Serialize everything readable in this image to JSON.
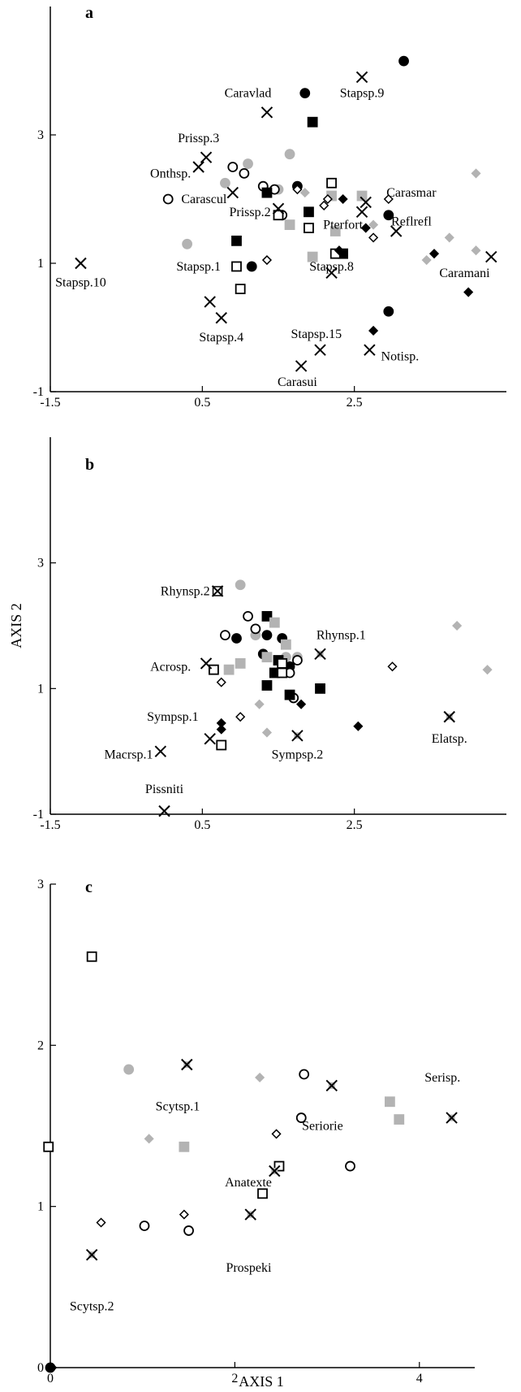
{
  "colors": {
    "black": "#000000",
    "gray": "#b3b3b3",
    "white": "#ffffff"
  },
  "marker_types": [
    "filled-circle",
    "gray-circle",
    "open-circle",
    "filled-square",
    "gray-square",
    "open-square",
    "filled-diamond",
    "gray-diamond",
    "open-diamond",
    "x-cross",
    "x-cross-gray",
    "x-box"
  ],
  "xlabel": "AXIS 1",
  "ylabel": "AXIS 2",
  "chart_data": [
    {
      "type": "scatter",
      "panel": "a",
      "xlim": [
        -1.5,
        4.5
      ],
      "ylim": [
        -1,
        5
      ],
      "xticks": [
        -1.5,
        0.5,
        2.5
      ],
      "xtick_labels": [
        "-1.5",
        "0.5",
        "2.5"
      ],
      "yticks": [
        -1,
        1,
        3
      ],
      "ytick_labels": [
        "-1",
        "1",
        "3"
      ],
      "points": [
        {
          "x": 3.15,
          "y": 4.15,
          "m": "filled-circle"
        },
        {
          "x": 1.85,
          "y": 3.65,
          "m": "filled-circle"
        },
        {
          "x": 1.75,
          "y": 2.2,
          "m": "filled-circle"
        },
        {
          "x": 2.95,
          "y": 1.75,
          "m": "filled-circle"
        },
        {
          "x": 1.15,
          "y": 0.95,
          "m": "filled-circle"
        },
        {
          "x": 2.95,
          "y": 0.25,
          "m": "filled-circle"
        },
        {
          "x": 0.3,
          "y": 1.3,
          "m": "gray-circle"
        },
        {
          "x": 0.8,
          "y": 2.25,
          "m": "gray-circle"
        },
        {
          "x": 1.1,
          "y": 2.55,
          "m": "gray-circle"
        },
        {
          "x": 1.65,
          "y": 2.7,
          "m": "gray-circle"
        },
        {
          "x": 1.5,
          "y": 2.15,
          "m": "gray-circle"
        },
        {
          "x": 0.05,
          "y": 2.0,
          "m": "open-circle"
        },
        {
          "x": 0.9,
          "y": 2.5,
          "m": "open-circle"
        },
        {
          "x": 1.05,
          "y": 2.4,
          "m": "open-circle"
        },
        {
          "x": 1.3,
          "y": 2.2,
          "m": "open-circle"
        },
        {
          "x": 1.45,
          "y": 2.15,
          "m": "open-circle"
        },
        {
          "x": 1.55,
          "y": 1.75,
          "m": "open-circle"
        },
        {
          "x": 1.95,
          "y": 3.2,
          "m": "filled-square"
        },
        {
          "x": 1.35,
          "y": 2.1,
          "m": "filled-square"
        },
        {
          "x": 1.9,
          "y": 1.8,
          "m": "filled-square"
        },
        {
          "x": 0.95,
          "y": 1.35,
          "m": "filled-square"
        },
        {
          "x": 2.35,
          "y": 1.15,
          "m": "filled-square"
        },
        {
          "x": 1.65,
          "y": 1.6,
          "m": "gray-square"
        },
        {
          "x": 2.2,
          "y": 2.05,
          "m": "gray-square"
        },
        {
          "x": 2.6,
          "y": 2.05,
          "m": "gray-square"
        },
        {
          "x": 2.25,
          "y": 1.5,
          "m": "gray-square"
        },
        {
          "x": 1.95,
          "y": 1.1,
          "m": "gray-square"
        },
        {
          "x": 2.2,
          "y": 2.25,
          "m": "open-square"
        },
        {
          "x": 1.5,
          "y": 1.75,
          "m": "open-square"
        },
        {
          "x": 1.9,
          "y": 1.55,
          "m": "open-square"
        },
        {
          "x": 2.25,
          "y": 1.15,
          "m": "open-square"
        },
        {
          "x": 0.95,
          "y": 0.95,
          "m": "open-square"
        },
        {
          "x": 1.0,
          "y": 0.6,
          "m": "open-square"
        },
        {
          "x": 2.35,
          "y": 2.0,
          "m": "filled-diamond"
        },
        {
          "x": 2.65,
          "y": 1.55,
          "m": "filled-diamond"
        },
        {
          "x": 2.3,
          "y": 1.2,
          "m": "filled-diamond"
        },
        {
          "x": 3.55,
          "y": 1.15,
          "m": "filled-diamond"
        },
        {
          "x": 4.0,
          "y": 0.55,
          "m": "filled-diamond"
        },
        {
          "x": 2.75,
          "y": -0.05,
          "m": "filled-diamond"
        },
        {
          "x": 1.85,
          "y": 2.1,
          "m": "gray-diamond"
        },
        {
          "x": 2.75,
          "y": 1.6,
          "m": "gray-diamond"
        },
        {
          "x": 3.45,
          "y": 1.05,
          "m": "gray-diamond"
        },
        {
          "x": 3.75,
          "y": 1.4,
          "m": "gray-diamond"
        },
        {
          "x": 4.1,
          "y": 1.2,
          "m": "gray-diamond"
        },
        {
          "x": 4.1,
          "y": 2.4,
          "m": "gray-diamond"
        },
        {
          "x": 1.75,
          "y": 2.15,
          "m": "open-diamond"
        },
        {
          "x": 2.1,
          "y": 1.9,
          "m": "open-diamond"
        },
        {
          "x": 2.15,
          "y": 2.0,
          "m": "open-diamond"
        },
        {
          "x": 2.95,
          "y": 2.0,
          "m": "open-diamond"
        },
        {
          "x": 2.75,
          "y": 1.4,
          "m": "open-diamond"
        },
        {
          "x": 1.35,
          "y": 1.05,
          "m": "open-diamond"
        }
      ],
      "labeled": [
        {
          "x": -1.1,
          "y": 1.0,
          "m": "x-cross",
          "label": "Stapsp.10",
          "lx": -1.1,
          "ly": 0.7,
          "anchor": "middle"
        },
        {
          "x": 0.55,
          "y": 2.65,
          "m": "x-cross",
          "label": "Prissp.3",
          "lx": 0.45,
          "ly": 2.95,
          "anchor": "middle"
        },
        {
          "x": 0.45,
          "y": 2.5,
          "m": "x-cross",
          "label": "Onthsp.",
          "lx": 0.35,
          "ly": 2.4,
          "anchor": "end"
        },
        {
          "x": 1.35,
          "y": 3.35,
          "m": "x-cross",
          "label": "Caravlad",
          "lx": 1.1,
          "ly": 3.65,
          "anchor": "middle"
        },
        {
          "x": 2.6,
          "y": 3.9,
          "m": "x-cross",
          "label": "Stapsp.9",
          "lx": 2.6,
          "ly": 3.65,
          "anchor": "middle"
        },
        {
          "x": 0.9,
          "y": 2.1,
          "m": "x-cross",
          "label": "Carascul",
          "lx": 0.82,
          "ly": 2.0,
          "anchor": "end"
        },
        {
          "x": 1.5,
          "y": 1.85,
          "m": "x-cross",
          "label": "Prissp.2",
          "lx": 1.4,
          "ly": 1.8,
          "anchor": "end"
        },
        {
          "x": 2.65,
          "y": 1.95,
          "m": "x-cross",
          "label": "Carasmar",
          "lx": 3.25,
          "ly": 2.1,
          "anchor": "middle"
        },
        {
          "x": 2.6,
          "y": 1.8,
          "m": "x-cross",
          "label": "Pterfort",
          "lx": 2.35,
          "ly": 1.6,
          "anchor": "middle"
        },
        {
          "x": 3.05,
          "y": 1.5,
          "m": "x-cross",
          "label": "Reflrefl",
          "lx": 3.25,
          "ly": 1.65,
          "anchor": "middle"
        },
        {
          "x": 4.3,
          "y": 1.1,
          "m": "x-cross",
          "label": "Caramani",
          "lx": 3.95,
          "ly": 0.85,
          "anchor": "middle"
        },
        {
          "x": 2.2,
          "y": 0.85,
          "m": "x-cross",
          "label": "Stapsp.8",
          "lx": 2.2,
          "ly": 0.95,
          "anchor": "middle"
        },
        {
          "x": 0.6,
          "y": 0.4,
          "m": "x-cross",
          "label": "Stapsp.1",
          "lx": 0.45,
          "ly": 0.95,
          "anchor": "middle"
        },
        {
          "x": 0.75,
          "y": 0.15,
          "m": "x-cross",
          "label": "Stapsp.4",
          "lx": 0.75,
          "ly": -0.15,
          "anchor": "middle"
        },
        {
          "x": 2.05,
          "y": -0.35,
          "m": "x-cross",
          "label": "Stapsp.15",
          "lx": 2.0,
          "ly": -0.1,
          "anchor": "middle"
        },
        {
          "x": 2.7,
          "y": -0.35,
          "m": "x-cross",
          "label": "Notisp.",
          "lx": 3.1,
          "ly": -0.45,
          "anchor": "middle"
        },
        {
          "x": 1.8,
          "y": -0.6,
          "m": "x-cross",
          "label": "Carasui",
          "lx": 1.75,
          "ly": -0.85,
          "anchor": "middle"
        }
      ]
    },
    {
      "type": "scatter",
      "panel": "b",
      "xlim": [
        -1.5,
        4.5
      ],
      "ylim": [
        -1,
        5
      ],
      "xticks": [
        -1.5,
        0.5,
        2.5
      ],
      "xtick_labels": [
        "-1.5",
        "0.5",
        "2.5"
      ],
      "yticks": [
        -1,
        1,
        3
      ],
      "ytick_labels": [
        "-1",
        "1",
        "3"
      ],
      "points": [
        {
          "x": 0.95,
          "y": 1.8,
          "m": "filled-circle"
        },
        {
          "x": 1.35,
          "y": 1.85,
          "m": "filled-circle"
        },
        {
          "x": 1.55,
          "y": 1.8,
          "m": "filled-circle"
        },
        {
          "x": 1.3,
          "y": 1.55,
          "m": "filled-circle"
        },
        {
          "x": 1.65,
          "y": 1.35,
          "m": "filled-circle"
        },
        {
          "x": 1.0,
          "y": 2.65,
          "m": "gray-circle"
        },
        {
          "x": 1.2,
          "y": 1.85,
          "m": "gray-circle"
        },
        {
          "x": 1.6,
          "y": 1.5,
          "m": "gray-circle"
        },
        {
          "x": 1.75,
          "y": 1.5,
          "m": "gray-circle"
        },
        {
          "x": 1.1,
          "y": 2.15,
          "m": "open-circle"
        },
        {
          "x": 1.2,
          "y": 1.95,
          "m": "open-circle"
        },
        {
          "x": 0.8,
          "y": 1.85,
          "m": "open-circle"
        },
        {
          "x": 1.75,
          "y": 1.45,
          "m": "open-circle"
        },
        {
          "x": 1.65,
          "y": 1.25,
          "m": "open-circle"
        },
        {
          "x": 1.7,
          "y": 0.85,
          "m": "open-circle"
        },
        {
          "x": 1.35,
          "y": 2.15,
          "m": "filled-square"
        },
        {
          "x": 1.5,
          "y": 1.45,
          "m": "filled-square"
        },
        {
          "x": 1.45,
          "y": 1.25,
          "m": "filled-square"
        },
        {
          "x": 1.35,
          "y": 1.05,
          "m": "filled-square"
        },
        {
          "x": 1.65,
          "y": 0.9,
          "m": "filled-square"
        },
        {
          "x": 2.05,
          "y": 1.0,
          "m": "filled-square"
        },
        {
          "x": 1.45,
          "y": 2.05,
          "m": "gray-square"
        },
        {
          "x": 1.6,
          "y": 1.7,
          "m": "gray-square"
        },
        {
          "x": 1.35,
          "y": 1.5,
          "m": "gray-square"
        },
        {
          "x": 1.0,
          "y": 1.4,
          "m": "gray-square"
        },
        {
          "x": 0.85,
          "y": 1.3,
          "m": "gray-square"
        },
        {
          "x": 0.65,
          "y": 1.3,
          "m": "open-square"
        },
        {
          "x": 1.55,
          "y": 1.4,
          "m": "open-square"
        },
        {
          "x": 1.55,
          "y": 1.25,
          "m": "open-square"
        },
        {
          "x": 0.75,
          "y": 0.1,
          "m": "open-square"
        },
        {
          "x": 1.8,
          "y": 0.75,
          "m": "filled-diamond"
        },
        {
          "x": 0.75,
          "y": 0.45,
          "m": "filled-diamond"
        },
        {
          "x": 0.75,
          "y": 0.35,
          "m": "filled-diamond"
        },
        {
          "x": 2.55,
          "y": 0.4,
          "m": "filled-diamond"
        },
        {
          "x": 1.25,
          "y": 0.75,
          "m": "gray-diamond"
        },
        {
          "x": 1.35,
          "y": 0.3,
          "m": "gray-diamond"
        },
        {
          "x": 3.85,
          "y": 2.0,
          "m": "gray-diamond"
        },
        {
          "x": 4.25,
          "y": 1.3,
          "m": "gray-diamond"
        },
        {
          "x": 0.75,
          "y": 1.1,
          "m": "open-diamond"
        },
        {
          "x": 1.0,
          "y": 0.55,
          "m": "open-diamond"
        },
        {
          "x": 3.0,
          "y": 1.35,
          "m": "open-diamond"
        }
      ],
      "labeled": [
        {
          "x": 0.7,
          "y": 2.55,
          "m": "x-box",
          "label": "Rhynsp.2",
          "lx": 0.6,
          "ly": 2.55,
          "anchor": "end"
        },
        {
          "x": 2.05,
          "y": 1.55,
          "m": "x-cross-gray",
          "label": "Rhynsp.1",
          "lx": 2.0,
          "ly": 1.85,
          "anchor": "start"
        },
        {
          "x": 0.55,
          "y": 1.4,
          "m": "x-cross",
          "label": "Acrosp.",
          "lx": 0.35,
          "ly": 1.35,
          "anchor": "end"
        },
        {
          "x": 0.6,
          "y": 0.2,
          "m": "x-cross",
          "label": "Sympsp.1",
          "lx": 0.45,
          "ly": 0.55,
          "anchor": "end"
        },
        {
          "x": 1.75,
          "y": 0.25,
          "m": "x-cross-gray",
          "label": "Sympsp.2",
          "lx": 1.75,
          "ly": -0.05,
          "anchor": "middle"
        },
        {
          "x": 3.75,
          "y": 0.55,
          "m": "x-cross-gray",
          "label": "Elatsp.",
          "lx": 3.75,
          "ly": 0.2,
          "anchor": "middle"
        },
        {
          "x": -0.05,
          "y": 0.0,
          "m": "x-cross",
          "label": "Macrsp.1",
          "lx": -0.15,
          "ly": -0.05,
          "anchor": "end"
        },
        {
          "x": 0.0,
          "y": -0.95,
          "m": "x-cross",
          "label": "Pissniti",
          "lx": 0.0,
          "ly": -0.6,
          "anchor": "middle"
        }
      ]
    },
    {
      "type": "scatter",
      "panel": "c",
      "xlim": [
        0,
        4.6
      ],
      "ylim": [
        0,
        3
      ],
      "xticks": [
        0,
        2,
        4
      ],
      "xtick_labels": [
        "0",
        "2",
        "4"
      ],
      "yticks": [
        0,
        1,
        2,
        3
      ],
      "ytick_labels": [
        "0",
        "1",
        "2",
        "3"
      ],
      "points": [
        {
          "x": 0.0,
          "y": 0.0,
          "m": "filled-circle"
        },
        {
          "x": 0.85,
          "y": 1.85,
          "m": "gray-circle"
        },
        {
          "x": 2.75,
          "y": 1.82,
          "m": "open-circle"
        },
        {
          "x": 2.72,
          "y": 1.55,
          "m": "open-circle"
        },
        {
          "x": 3.25,
          "y": 1.25,
          "m": "open-circle"
        },
        {
          "x": 1.5,
          "y": 0.85,
          "m": "open-circle"
        },
        {
          "x": 1.02,
          "y": 0.88,
          "m": "open-circle"
        },
        {
          "x": 3.68,
          "y": 1.65,
          "m": "gray-square"
        },
        {
          "x": 3.78,
          "y": 1.54,
          "m": "gray-square"
        },
        {
          "x": 1.45,
          "y": 1.37,
          "m": "gray-square"
        },
        {
          "x": 0.45,
          "y": 2.55,
          "m": "open-square"
        },
        {
          "x": -0.02,
          "y": 1.37,
          "m": "open-square"
        },
        {
          "x": 2.48,
          "y": 1.25,
          "m": "open-square"
        },
        {
          "x": 2.3,
          "y": 1.08,
          "m": "open-square"
        },
        {
          "x": 2.27,
          "y": 1.8,
          "m": "gray-diamond"
        },
        {
          "x": 1.07,
          "y": 1.42,
          "m": "gray-diamond"
        },
        {
          "x": 2.45,
          "y": 1.45,
          "m": "open-diamond"
        },
        {
          "x": 0.55,
          "y": 0.9,
          "m": "open-diamond"
        },
        {
          "x": 1.45,
          "y": 0.95,
          "m": "open-diamond"
        },
        {
          "x": 0.02,
          "y": 0.0,
          "m": "filled-diamond"
        }
      ],
      "labeled": [
        {
          "x": 1.48,
          "y": 1.88,
          "m": "x-cross-gray",
          "label": "Scytsp.1",
          "lx": 1.38,
          "ly": 1.62,
          "anchor": "middle"
        },
        {
          "x": 3.05,
          "y": 1.75,
          "m": "x-cross-gray",
          "label": "Seriorie",
          "lx": 2.95,
          "ly": 1.5,
          "anchor": "middle"
        },
        {
          "x": 4.35,
          "y": 1.55,
          "m": "x-cross-gray",
          "label": "Serisp.",
          "lx": 4.25,
          "ly": 1.8,
          "anchor": "middle"
        },
        {
          "x": 2.43,
          "y": 1.22,
          "m": "x-cross-gray",
          "label": "Anatexte",
          "lx": 2.4,
          "ly": 1.15,
          "anchor": "end"
        },
        {
          "x": 2.17,
          "y": 0.95,
          "m": "x-cross-gray",
          "label": "Prospeki",
          "lx": 2.15,
          "ly": 0.62,
          "anchor": "middle"
        },
        {
          "x": 0.45,
          "y": 0.7,
          "m": "x-cross-gray",
          "label": "Scytsp.2",
          "lx": 0.45,
          "ly": 0.38,
          "anchor": "middle"
        }
      ]
    }
  ]
}
